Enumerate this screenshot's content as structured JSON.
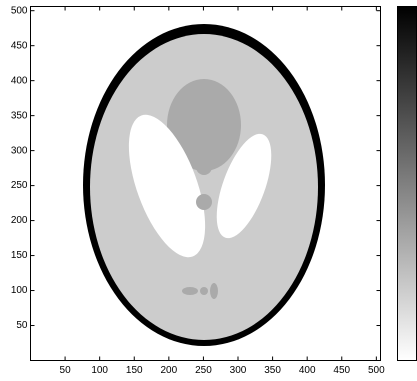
{
  "chart_data": {
    "type": "image",
    "xlim": [
      0,
      506
    ],
    "ylim": [
      0,
      506
    ],
    "xticks": [
      50,
      100,
      150,
      200,
      250,
      300,
      350,
      400,
      450,
      500
    ],
    "yticks": [
      50,
      100,
      150,
      200,
      250,
      300,
      350,
      400,
      450,
      500
    ],
    "colorbar": true
  }
}
